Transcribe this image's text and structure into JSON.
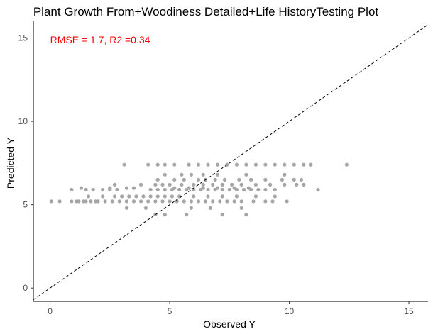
{
  "chart_data": {
    "type": "scatter",
    "title": "Plant Growth From+Woodiness Detailed+Life HistoryTesting Plot",
    "xlabel": "Observed Y",
    "ylabel": "Predicted Y",
    "xlim": [
      -0.7,
      15.8
    ],
    "ylim": [
      -0.8,
      16.0
    ],
    "x_ticks": [
      0,
      5,
      10,
      15
    ],
    "y_ticks": [
      0,
      5,
      10,
      15
    ],
    "grid": false,
    "annotation": {
      "text": "RMSE = 1.7, R2 =0.34",
      "x": 0.0,
      "y": 14.9,
      "color": "#ff0000"
    },
    "reference_line": {
      "slope": 1,
      "intercept": 0,
      "style": "dashed",
      "color": "#000000"
    },
    "point_color": "#a6a6a6",
    "points": [
      [
        0.05,
        5.2
      ],
      [
        0.4,
        5.2
      ],
      [
        0.9,
        5.2
      ],
      [
        1.1,
        5.2
      ],
      [
        1.2,
        5.2
      ],
      [
        1.4,
        5.2
      ],
      [
        1.5,
        5.2
      ],
      [
        1.7,
        5.2
      ],
      [
        1.9,
        5.2
      ],
      [
        2.0,
        5.2
      ],
      [
        2.3,
        5.2
      ],
      [
        2.6,
        5.2
      ],
      [
        2.9,
        5.2
      ],
      [
        3.2,
        5.2
      ],
      [
        3.5,
        5.2
      ],
      [
        3.8,
        5.2
      ],
      [
        4.1,
        5.2
      ],
      [
        4.4,
        5.2
      ],
      [
        4.7,
        5.2
      ],
      [
        5.0,
        5.2
      ],
      [
        5.3,
        5.2
      ],
      [
        5.6,
        5.2
      ],
      [
        5.9,
        5.2
      ],
      [
        6.2,
        5.2
      ],
      [
        6.5,
        5.2
      ],
      [
        6.8,
        5.2
      ],
      [
        7.1,
        5.2
      ],
      [
        7.4,
        5.2
      ],
      [
        7.7,
        5.2
      ],
      [
        8.0,
        5.2
      ],
      [
        8.5,
        5.2
      ],
      [
        9.0,
        5.2
      ],
      [
        9.3,
        5.2
      ],
      [
        9.9,
        5.2
      ],
      [
        1.6,
        5.5
      ],
      [
        2.2,
        5.5
      ],
      [
        2.7,
        5.5
      ],
      [
        3.0,
        5.5
      ],
      [
        3.3,
        5.5
      ],
      [
        3.6,
        5.5
      ],
      [
        3.9,
        5.5
      ],
      [
        4.2,
        5.5
      ],
      [
        4.5,
        5.5
      ],
      [
        4.8,
        5.5
      ],
      [
        5.1,
        5.5
      ],
      [
        5.4,
        5.5
      ],
      [
        6.0,
        5.5
      ],
      [
        6.6,
        5.5
      ],
      [
        7.2,
        5.5
      ],
      [
        7.8,
        5.5
      ],
      [
        8.6,
        5.5
      ],
      [
        9.4,
        5.5
      ],
      [
        0.9,
        5.9
      ],
      [
        1.5,
        5.9
      ],
      [
        1.8,
        5.9
      ],
      [
        2.2,
        5.9
      ],
      [
        2.5,
        5.9
      ],
      [
        2.8,
        5.9
      ],
      [
        4.2,
        5.9
      ],
      [
        4.5,
        5.9
      ],
      [
        4.8,
        5.9
      ],
      [
        5.1,
        5.9
      ],
      [
        5.4,
        5.9
      ],
      [
        5.7,
        5.9
      ],
      [
        6.0,
        5.9
      ],
      [
        6.3,
        5.9
      ],
      [
        6.6,
        5.9
      ],
      [
        6.9,
        5.9
      ],
      [
        7.2,
        5.9
      ],
      [
        7.5,
        5.9
      ],
      [
        7.8,
        5.9
      ],
      [
        8.1,
        5.9
      ],
      [
        8.4,
        5.9
      ],
      [
        8.7,
        5.9
      ],
      [
        9.0,
        5.9
      ],
      [
        9.4,
        5.9
      ],
      [
        11.2,
        5.9
      ],
      [
        1.3,
        6.0
      ],
      [
        2.5,
        6.0
      ],
      [
        3.2,
        6.0
      ],
      [
        3.5,
        6.0
      ],
      [
        5.2,
        6.0
      ],
      [
        5.8,
        6.0
      ],
      [
        6.4,
        6.0
      ],
      [
        7.0,
        6.0
      ],
      [
        7.7,
        6.0
      ],
      [
        8.3,
        6.0
      ],
      [
        2.7,
        6.2
      ],
      [
        3.8,
        6.2
      ],
      [
        4.4,
        6.2
      ],
      [
        4.7,
        6.2
      ],
      [
        5.0,
        6.2
      ],
      [
        5.5,
        6.2
      ],
      [
        6.0,
        6.2
      ],
      [
        6.4,
        6.2
      ],
      [
        6.8,
        6.2
      ],
      [
        7.2,
        6.2
      ],
      [
        7.6,
        6.2
      ],
      [
        8.0,
        6.2
      ],
      [
        8.6,
        6.2
      ],
      [
        9.2,
        6.2
      ],
      [
        9.8,
        6.2
      ],
      [
        10.3,
        6.2
      ],
      [
        10.6,
        6.2
      ],
      [
        4.5,
        6.5
      ],
      [
        5.2,
        6.5
      ],
      [
        5.6,
        6.5
      ],
      [
        6.2,
        6.5
      ],
      [
        6.5,
        6.5
      ],
      [
        6.9,
        6.5
      ],
      [
        7.3,
        6.5
      ],
      [
        7.9,
        6.5
      ],
      [
        8.4,
        6.5
      ],
      [
        9.0,
        6.5
      ],
      [
        9.7,
        6.5
      ],
      [
        10.2,
        6.5
      ],
      [
        10.5,
        6.5
      ],
      [
        4.8,
        6.8
      ],
      [
        5.5,
        6.8
      ],
      [
        5.9,
        6.8
      ],
      [
        6.4,
        6.8
      ],
      [
        7.0,
        6.8
      ],
      [
        8.2,
        6.8
      ],
      [
        9.8,
        6.8
      ],
      [
        3.1,
        7.4
      ],
      [
        4.1,
        7.4
      ],
      [
        4.5,
        7.4
      ],
      [
        4.8,
        7.4
      ],
      [
        5.2,
        7.4
      ],
      [
        5.8,
        7.4
      ],
      [
        6.2,
        7.4
      ],
      [
        6.6,
        7.4
      ],
      [
        7.0,
        7.4
      ],
      [
        7.4,
        7.4
      ],
      [
        7.8,
        7.4
      ],
      [
        8.2,
        7.4
      ],
      [
        8.6,
        7.4
      ],
      [
        9.0,
        7.4
      ],
      [
        9.4,
        7.4
      ],
      [
        9.8,
        7.4
      ],
      [
        10.2,
        7.4
      ],
      [
        10.6,
        7.4
      ],
      [
        10.9,
        7.4
      ],
      [
        12.4,
        7.4
      ],
      [
        4.4,
        4.4
      ],
      [
        4.8,
        4.4
      ],
      [
        5.7,
        4.4
      ],
      [
        7.2,
        4.4
      ],
      [
        8.2,
        4.4
      ],
      [
        3.2,
        4.8
      ],
      [
        4.0,
        4.8
      ],
      [
        5.9,
        4.8
      ],
      [
        6.7,
        4.8
      ],
      [
        8.0,
        4.8
      ]
    ]
  }
}
